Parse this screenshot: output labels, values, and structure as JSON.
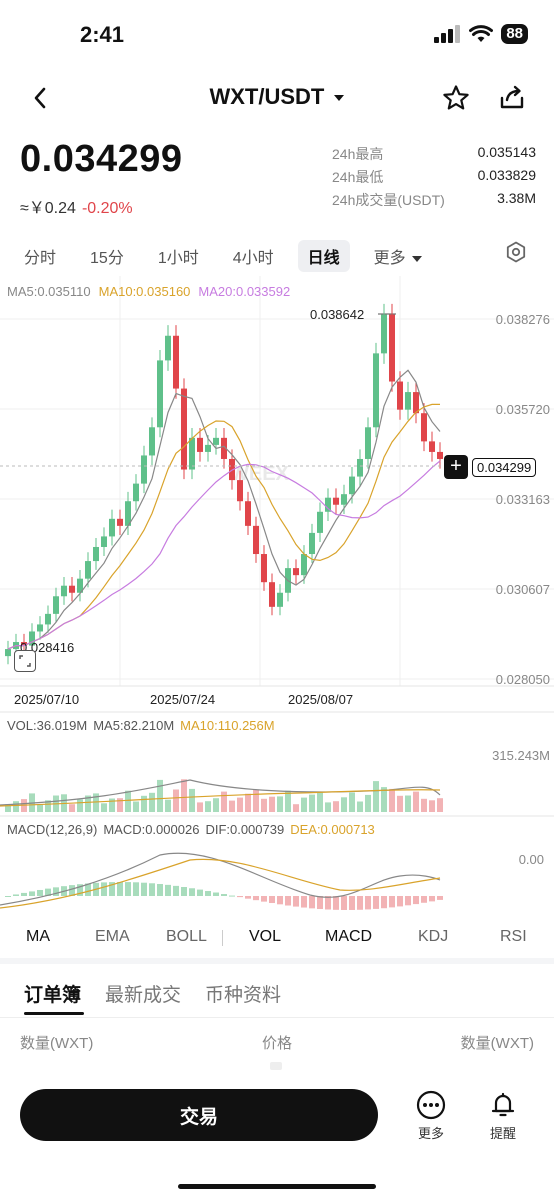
{
  "status_bar": {
    "time": "2:41",
    "battery": "88"
  },
  "header": {
    "title": "WXT/USDT",
    "dropdown_icon": "caret-down-icon"
  },
  "price": {
    "last": "0.034299",
    "cny": "≈￥0.24",
    "change": "-0.20%",
    "stats": [
      {
        "label": "24h最高",
        "value": "0.035143"
      },
      {
        "label": "24h最低",
        "value": "0.033829"
      },
      {
        "label": "24h成交量(USDT)",
        "value": "3.38M"
      }
    ]
  },
  "intervals": [
    "分时",
    "15分",
    "1小时",
    "4小时",
    "日线",
    "更多"
  ],
  "active_interval": "日线",
  "chart": {
    "ma5": "MA5:0.035110",
    "ma10": "MA10:0.035160",
    "ma20": "MA20:0.033592",
    "y_labels": [
      "0.038276",
      "0.035720",
      "0.033163",
      "0.030607",
      "0.028050"
    ],
    "dates": [
      "2025/07/10",
      "2025/07/24",
      "2025/08/07"
    ],
    "high_label": "0.038642",
    "low_label": "0.028416",
    "current_price": "0.034299",
    "watermark": "WEEX",
    "colors": {
      "up": "#5fc08a",
      "down": "#e0454a",
      "ma5": "#888888",
      "ma10": "#d9a32b",
      "ma20": "#c77ce0"
    }
  },
  "volume": {
    "vol": "VOL:36.019M",
    "ma5": "MA5:82.210M",
    "ma10": "MA10:110.256M",
    "y_label": "315.243M"
  },
  "macd": {
    "label": "MACD(12,26,9)",
    "macd": "MACD:0.000026",
    "dif": "DIF:0.000739",
    "dea": "DEA:0.000713",
    "y_label": "0.00"
  },
  "indicator_tabs": [
    "MA",
    "EMA",
    "BOLL",
    "VOL",
    "MACD",
    "KDJ",
    "RSI"
  ],
  "orderbook": {
    "tabs": [
      "订单簿",
      "最新成交",
      "币种资料"
    ],
    "headers": [
      "数量(WXT)",
      "价格",
      "数量(WXT)"
    ]
  },
  "bottom": {
    "trade": "交易",
    "more": "更多",
    "alert": "提醒"
  }
}
